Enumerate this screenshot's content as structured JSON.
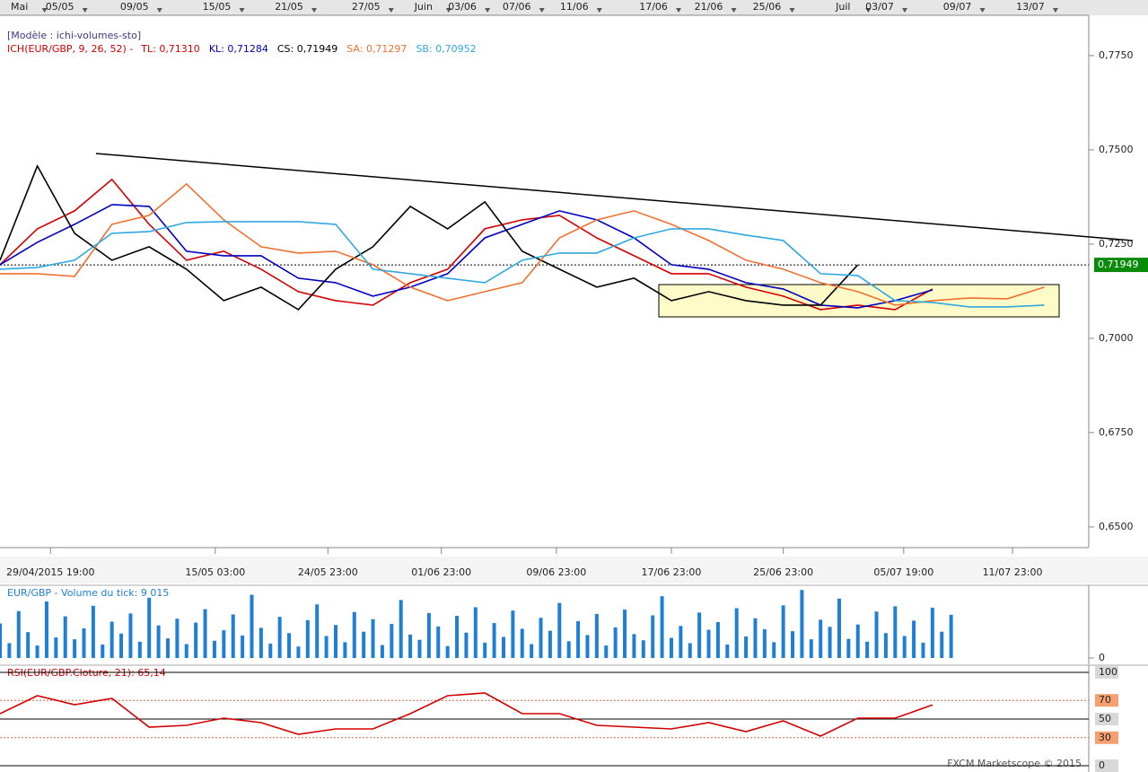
{
  "chart_data": [
    {
      "type": "line",
      "template": "[Modèle : ichi-volumes-sto]",
      "indicator": "ICH(EUR/GBP, 9, 26, 52) -",
      "x": [
        0,
        48,
        96,
        144,
        192,
        240,
        288,
        336,
        384,
        432,
        480,
        528,
        576,
        624,
        672,
        720,
        768,
        816,
        864,
        912,
        960,
        1008,
        1056,
        1104,
        1152,
        1200,
        1248,
        1296,
        1344,
        1392
      ],
      "xlim": [
        0,
        1400
      ],
      "ylim": [
        0.6445,
        0.7857
      ],
      "yticks": [
        {
          "value": 0.775,
          "label": "0,7750"
        },
        {
          "value": 0.75,
          "label": "0,7500"
        },
        {
          "value": 0.725,
          "label": "0,7250"
        },
        {
          "value": 0.7,
          "label": "0,7000"
        },
        {
          "value": 0.675,
          "label": "0,6750"
        },
        {
          "value": 0.65,
          "label": "0,6500"
        }
      ],
      "xticks_top": [
        {
          "value": 25,
          "label": "Mai"
        },
        {
          "value": 77,
          "label": "05/05"
        },
        {
          "value": 173,
          "label": "09/05"
        },
        {
          "value": 279,
          "label": "15/05"
        },
        {
          "value": 372,
          "label": "21/05"
        },
        {
          "value": 471,
          "label": "27/05"
        },
        {
          "value": 545,
          "label": "Juin"
        },
        {
          "value": 595,
          "label": "03/06"
        },
        {
          "value": 665,
          "label": "07/06"
        },
        {
          "value": 739,
          "label": "11/06"
        },
        {
          "value": 841,
          "label": "17/06"
        },
        {
          "value": 912,
          "label": "21/06"
        },
        {
          "value": 987,
          "label": "25/06"
        },
        {
          "value": 1085,
          "label": "Juil"
        },
        {
          "value": 1132,
          "label": "03/07"
        },
        {
          "value": 1232,
          "label": "09/07"
        },
        {
          "value": 1326,
          "label": "13/07"
        }
      ],
      "xticks": [
        {
          "value": 65,
          "label": "29/04/2015 19:00"
        },
        {
          "value": 277,
          "label": "15/05 03:00"
        },
        {
          "value": 422,
          "label": "24/05 23:00"
        },
        {
          "value": 568,
          "label": "01/06 23:00"
        },
        {
          "value": 716,
          "label": "09/06 23:00"
        },
        {
          "value": 864,
          "label": "17/06 23:00"
        },
        {
          "value": 1008,
          "label": "25/06 23:00"
        },
        {
          "value": 1163,
          "label": "05/07 19:00"
        },
        {
          "value": 1303,
          "label": "11/07 23:00"
        }
      ],
      "last_price": {
        "value": 0.71949,
        "label": "0,71949"
      },
      "series": [
        {
          "name": "TL: 0,71310",
          "color": "#d40000",
          "values": [
            0.71952,
            0.72905,
            0.73381,
            0.74214,
            0.73024,
            0.72071,
            0.72309,
            0.71833,
            0.71238,
            0.71,
            0.70881,
            0.71476,
            0.71833,
            0.72905,
            0.73143,
            0.73262,
            0.72666,
            0.7219,
            0.71714,
            0.71714,
            0.71357,
            0.71119,
            0.70762,
            0.70881,
            0.70762,
            0.7131,
            null,
            null,
            null,
            null
          ]
        },
        {
          "name": "KL: 0,71284",
          "color": "#0000c0",
          "values": [
            0.71952,
            0.72547,
            0.73024,
            0.73547,
            0.735,
            0.72309,
            0.7219,
            0.7219,
            0.71595,
            0.71476,
            0.71119,
            0.71357,
            0.71714,
            0.72666,
            0.73024,
            0.73381,
            0.73143,
            0.72666,
            0.71952,
            0.71833,
            0.71476,
            0.71309,
            0.70881,
            0.70809,
            0.71,
            0.71284,
            null,
            null,
            null,
            null
          ]
        },
        {
          "name": "CS: 0,71949",
          "color": "#000000",
          "values": [
            0.72071,
            0.74571,
            0.72786,
            0.72071,
            0.72428,
            0.71833,
            0.71,
            0.71357,
            0.70762,
            0.71833,
            0.72428,
            0.735,
            0.72905,
            0.73619,
            0.72309,
            0.71833,
            0.71357,
            0.71595,
            0.71,
            0.71238,
            0.71,
            0.70881,
            0.70881,
            0.71949,
            null,
            null,
            null,
            null,
            null,
            null
          ]
        },
        {
          "name": "SA: 0,71297",
          "color": "#f07030",
          "values": [
            0.71714,
            0.71714,
            0.71643,
            0.73024,
            0.73262,
            0.74095,
            0.73143,
            0.72428,
            0.72262,
            0.72309,
            0.71952,
            0.71357,
            0.71,
            0.71238,
            0.71476,
            0.72666,
            0.73143,
            0.73381,
            0.73024,
            0.72595,
            0.72071,
            0.71833,
            0.71476,
            0.71238,
            0.70881,
            0.71,
            0.71071,
            0.71047,
            0.71357,
            null
          ]
        },
        {
          "name": "SB: 0,70952",
          "color": "#30a8e0",
          "values": [
            0.71833,
            0.71881,
            0.72071,
            0.72786,
            0.72833,
            0.73071,
            0.73095,
            0.73095,
            0.73095,
            0.73024,
            0.71833,
            0.71714,
            0.71595,
            0.71476,
            0.72071,
            0.72262,
            0.72262,
            0.72666,
            0.72905,
            0.72905,
            0.72738,
            0.72595,
            0.71714,
            0.71666,
            0.71,
            0.70952,
            0.70833,
            0.70833,
            0.70881,
            null
          ]
        }
      ]
    },
    {
      "type": "bar",
      "title": "EUR/GBP - Volume du tick: 9 015",
      "color": "#1f7fd6",
      "x": [
        0,
        12,
        24,
        36,
        48,
        60,
        72,
        84,
        96,
        108,
        120,
        132,
        144,
        156,
        168,
        180,
        192,
        204,
        216,
        228,
        240,
        252,
        264,
        276,
        288,
        300,
        312,
        324,
        336,
        348,
        360,
        372,
        384,
        396,
        408,
        420,
        432,
        444,
        456,
        468,
        480,
        492,
        504,
        516,
        528,
        540,
        552,
        564,
        576,
        588,
        600,
        612,
        624,
        636,
        648,
        660,
        672,
        684,
        696,
        708,
        720,
        732,
        744,
        756,
        768,
        780,
        792,
        804,
        816,
        828,
        840,
        852,
        864,
        876,
        888,
        900,
        912,
        924,
        936,
        948,
        960,
        972,
        984,
        996,
        1008,
        1020,
        1032,
        1044,
        1056,
        1068,
        1080,
        1092,
        1104,
        1116,
        1128,
        1140,
        1152,
        1164,
        1176,
        1188,
        1200,
        1212,
        1224
      ],
      "values": [
        7200,
        3100,
        9800,
        5400,
        2600,
        11800,
        4300,
        8700,
        3900,
        6200,
        10900,
        2800,
        7600,
        5100,
        9300,
        3400,
        12600,
        6800,
        4100,
        8200,
        2900,
        7400,
        10200,
        3600,
        5800,
        9100,
        4700,
        13200,
        6300,
        3000,
        8600,
        5200,
        2400,
        7900,
        11200,
        4600,
        6900,
        3300,
        9600,
        5500,
        8100,
        2700,
        7100,
        12100,
        4900,
        3800,
        9400,
        6600,
        2500,
        8800,
        5300,
        10600,
        3200,
        7300,
        4400,
        9900,
        6100,
        2900,
        8400,
        5700,
        11500,
        3500,
        7700,
        4800,
        9200,
        2600,
        6400,
        10100,
        5000,
        3700,
        8900,
        12900,
        4200,
        6700,
        3100,
        9500,
        5900,
        7500,
        2800,
        10400,
        4500,
        8300,
        6000,
        3300,
        11000,
        5600,
        14200,
        3900,
        8000,
        6500,
        12400,
        4000,
        7000,
        3400,
        9700,
        5200,
        10800,
        4600,
        7800,
        3200,
        10500,
        5500,
        9015
      ],
      "xlim": [
        0,
        1400
      ],
      "ylim": [
        0,
        15000
      ],
      "yticks": [
        0
      ]
    },
    {
      "type": "line",
      "title": "RSI(EUR/GBP.Cloture, 21): 65,14",
      "x": [
        0,
        48,
        96,
        144,
        192,
        240,
        288,
        336,
        384,
        432,
        480,
        528,
        576,
        624,
        672,
        720,
        768,
        816,
        864,
        912,
        960,
        1008,
        1056,
        1104,
        1152,
        1200,
        1248,
        1296,
        1344,
        1392
      ],
      "xlim": [
        0,
        1400
      ],
      "ylim": [
        0,
        100
      ],
      "yticks": [
        100,
        70,
        50,
        30,
        0
      ],
      "series": [
        {
          "color": "#d40000",
          "values": [
            55.8,
            75.0,
            65.4,
            72.1,
            41.3,
            43.3,
            51.0,
            46.2,
            33.7,
            39.4,
            39.4,
            55.8,
            75.0,
            77.9,
            55.8,
            55.8,
            43.3,
            41.3,
            39.4,
            46.2,
            36.5,
            48.1,
            31.7,
            51.0,
            51.0,
            65.14,
            null,
            null,
            null,
            null
          ]
        }
      ]
    }
  ],
  "footer": "FXCM Marketscope © 2015"
}
